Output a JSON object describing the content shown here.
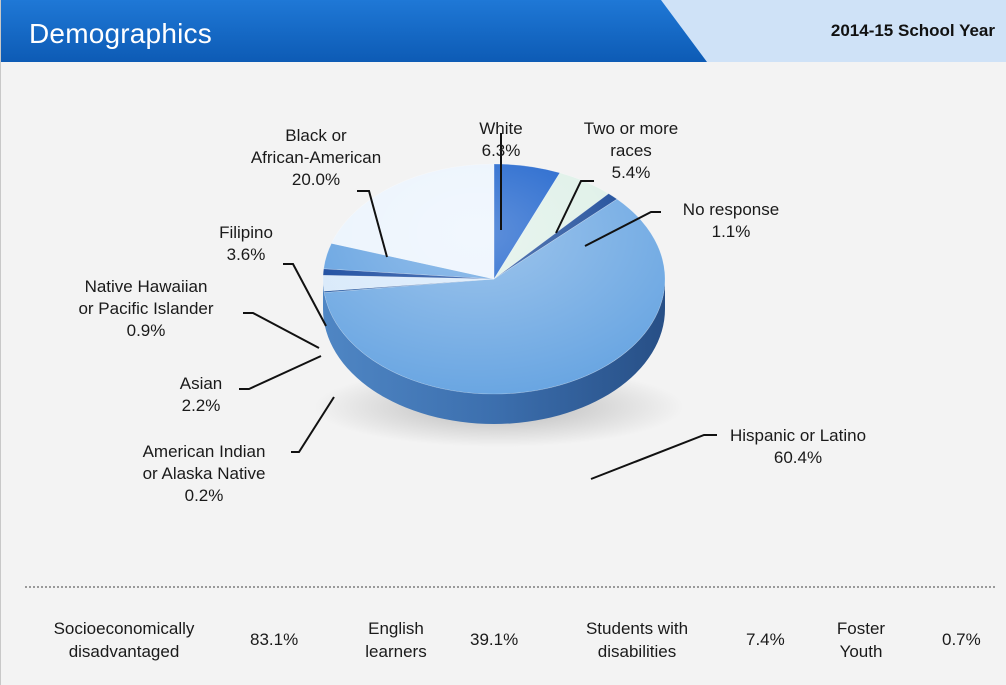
{
  "header": {
    "title": "Demographics",
    "year": "2014-15 School Year",
    "primary_color": "#1565c0",
    "secondary_color": "#cfe2f7"
  },
  "chart_data": {
    "type": "pie",
    "style": "3d",
    "slices": [
      {
        "name": "White",
        "value": 6.3,
        "label": "6.3%",
        "color": "#0b56c8"
      },
      {
        "name": "Two or more races",
        "value": 5.4,
        "label": "5.4%",
        "color": "#dcefe6"
      },
      {
        "name": "No response",
        "value": 1.1,
        "label": "1.1%",
        "color": "#0a3d91"
      },
      {
        "name": "Hispanic or Latino",
        "value": 60.4,
        "label": "60.4%",
        "color": "#6aa6e2"
      },
      {
        "name": "American Indian or Alaska Native",
        "value": 0.2,
        "label": "0.2%",
        "color": "#154d9c"
      },
      {
        "name": "Asian",
        "value": 2.2,
        "label": "2.2%",
        "color": "#d6e8fa"
      },
      {
        "name": "Native Hawaiian or Pacific Islander",
        "value": 0.9,
        "label": "0.9%",
        "color": "#0b3f99"
      },
      {
        "name": "Filipino",
        "value": 3.6,
        "label": "3.6%",
        "color": "#5f9fe0"
      },
      {
        "name": "Black or African-American",
        "value": 20.0,
        "label": "20.0%",
        "color": "#eaf3fd"
      }
    ]
  },
  "labels": {
    "white": [
      "White",
      "6.3%"
    ],
    "two_or_more": [
      "Two or more",
      "races",
      "5.4%"
    ],
    "no_response": [
      "No response",
      "1.1%"
    ],
    "hispanic": [
      "Hispanic or Latino",
      "60.4%"
    ],
    "american_indian": [
      "American Indian",
      "or Alaska Native",
      "0.2%"
    ],
    "asian": [
      "Asian",
      "2.2%"
    ],
    "native_hawaiian": [
      "Native Hawaiian",
      "or Pacific Islander",
      "0.9%"
    ],
    "filipino": [
      "Filipino",
      "3.6%"
    ],
    "black": [
      "Black or",
      "African-American",
      "20.0%"
    ]
  },
  "stats": [
    {
      "label": [
        "Socioeconomically",
        "disadvantaged"
      ],
      "value": "83.1%"
    },
    {
      "label": [
        "English",
        "learners"
      ],
      "value": "39.1%"
    },
    {
      "label": [
        "Students with",
        "disabilities"
      ],
      "value": "7.4%"
    },
    {
      "label": [
        "Foster",
        "Youth"
      ],
      "value": "0.7%"
    }
  ]
}
